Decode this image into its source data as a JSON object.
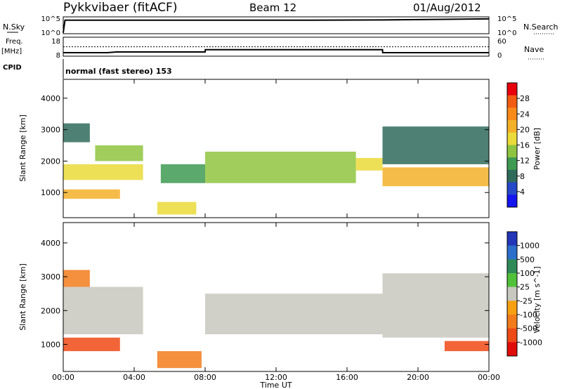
{
  "header": {
    "station": "Pykkvibaer (fitACF)",
    "beam": "Beam 12",
    "date": "01/Aug/2012"
  },
  "noise_panel": {
    "left_label": "N.Sky",
    "right_label": "N.Search",
    "left_ticks": [
      "10^5",
      "10^0"
    ],
    "right_ticks": [
      "10^5",
      "10^0"
    ]
  },
  "freq_panel": {
    "left_label_1": "Freq.",
    "left_label_2": "[MHz]",
    "right_label": "Nave",
    "left_ticks": [
      "18",
      "8"
    ],
    "right_ticks": [
      "60",
      "0"
    ]
  },
  "cpid_panel": {
    "label": "CPID",
    "text": "normal (fast stereo) 153"
  },
  "range_axis": {
    "label": "Slant Range [km]",
    "ticks": [
      1000,
      2000,
      3000,
      4000
    ],
    "ylim": [
      200,
      4600
    ]
  },
  "time_axis": {
    "label": "Time UT",
    "ticks": [
      "00:00",
      "04:00",
      "08:00",
      "12:00",
      "16:00",
      "20:00",
      "00:00"
    ],
    "xlim_hours": [
      0,
      24
    ]
  },
  "power_scale": {
    "title": "Power [dB]",
    "tick_labels": [
      "28",
      "24",
      "20",
      "16",
      "12",
      "8",
      "4"
    ],
    "colors": [
      "#e8000b",
      "#f25c12",
      "#f98a1a",
      "#f5b02a",
      "#eadb3a",
      "#8fc440",
      "#3e9a52",
      "#2f6b5a",
      "#2448c8",
      "#1414f0"
    ]
  },
  "velocity_scale": {
    "title": "Velocity [m s^-1]",
    "tick_labels": [
      "1000",
      "500",
      "100",
      "25",
      "-25",
      "-100",
      "-500",
      "-1000"
    ],
    "colors": [
      "#2336b8",
      "#2c6ec9",
      "#2e8b57",
      "#52c13a",
      "#c8c8c0",
      "#f6a014",
      "#f27c1c",
      "#ee4a16",
      "#e00c0a"
    ]
  },
  "chart_data": [
    {
      "type": "line",
      "title": "",
      "series": [
        {
          "name": "N.Sky",
          "x": [
            0,
            0.1,
            2,
            6,
            10,
            14,
            18,
            22,
            24
          ],
          "y_log10": [
            0.3,
            4.0,
            4.0,
            4.0,
            4.0,
            4.0,
            4.1,
            4.3,
            4.4
          ]
        },
        {
          "name": "N.Search",
          "x": [
            18,
            20,
            22,
            24
          ],
          "y_log10": [
            4.0,
            4.1,
            4.3,
            4.5
          ]
        }
      ]
    },
    {
      "type": "line",
      "series": [
        {
          "name": "Freq.",
          "x": [
            0,
            2.5,
            3,
            8,
            8.01,
            18,
            18.01,
            24
          ],
          "y": [
            10.5,
            10.5,
            11,
            11,
            12.6,
            12.6,
            10.5,
            10.5
          ]
        },
        {
          "name": "Nave",
          "x": [
            0,
            24
          ],
          "y": [
            40,
            40
          ]
        }
      ]
    },
    {
      "type": "heatmap",
      "ylabel": "Slant Range [km]",
      "xlabel": "Time UT",
      "color_scale": "Power [dB]",
      "regions": [
        {
          "t": [
            0,
            3.2
          ],
          "r": [
            800,
            1100
          ],
          "power_db": 22
        },
        {
          "t": [
            0,
            4.5
          ],
          "r": [
            1400,
            1900
          ],
          "power_db": 18
        },
        {
          "t": [
            1.8,
            4.5
          ],
          "r": [
            2000,
            2500
          ],
          "power_db": 14
        },
        {
          "t": [
            0,
            1.5
          ],
          "r": [
            2600,
            3200
          ],
          "power_db": 8
        },
        {
          "t": [
            5.3,
            7.5
          ],
          "r": [
            300,
            700
          ],
          "power_db": 18
        },
        {
          "t": [
            5.5,
            8
          ],
          "r": [
            1300,
            1900
          ],
          "power_db": 12
        },
        {
          "t": [
            8,
            16.5
          ],
          "r": [
            1300,
            2300
          ],
          "power_db": 14
        },
        {
          "t": [
            16.5,
            18
          ],
          "r": [
            1700,
            2100
          ],
          "power_db": 18
        },
        {
          "t": [
            18,
            24
          ],
          "r": [
            1200,
            1800
          ],
          "power_db": 22
        },
        {
          "t": [
            18,
            24
          ],
          "r": [
            1900,
            3100
          ],
          "power_db": 8
        }
      ]
    },
    {
      "type": "heatmap",
      "ylabel": "Slant Range [km]",
      "xlabel": "Time UT",
      "color_scale": "Velocity [m s^-1]",
      "regions": [
        {
          "t": [
            0,
            3.2
          ],
          "r": [
            800,
            1200
          ],
          "velocity": -500
        },
        {
          "t": [
            0,
            4.5
          ],
          "r": [
            1300,
            2700
          ],
          "velocity": 0
        },
        {
          "t": [
            0,
            1.5
          ],
          "r": [
            2700,
            3200
          ],
          "velocity": -100
        },
        {
          "t": [
            5.3,
            7.8
          ],
          "r": [
            300,
            800
          ],
          "velocity": -100
        },
        {
          "t": [
            8,
            18
          ],
          "r": [
            1300,
            2500
          ],
          "velocity": 0
        },
        {
          "t": [
            18,
            24
          ],
          "r": [
            1200,
            3100
          ],
          "velocity": 0
        },
        {
          "t": [
            21.5,
            24
          ],
          "r": [
            800,
            1100
          ],
          "velocity": -500
        }
      ]
    }
  ]
}
